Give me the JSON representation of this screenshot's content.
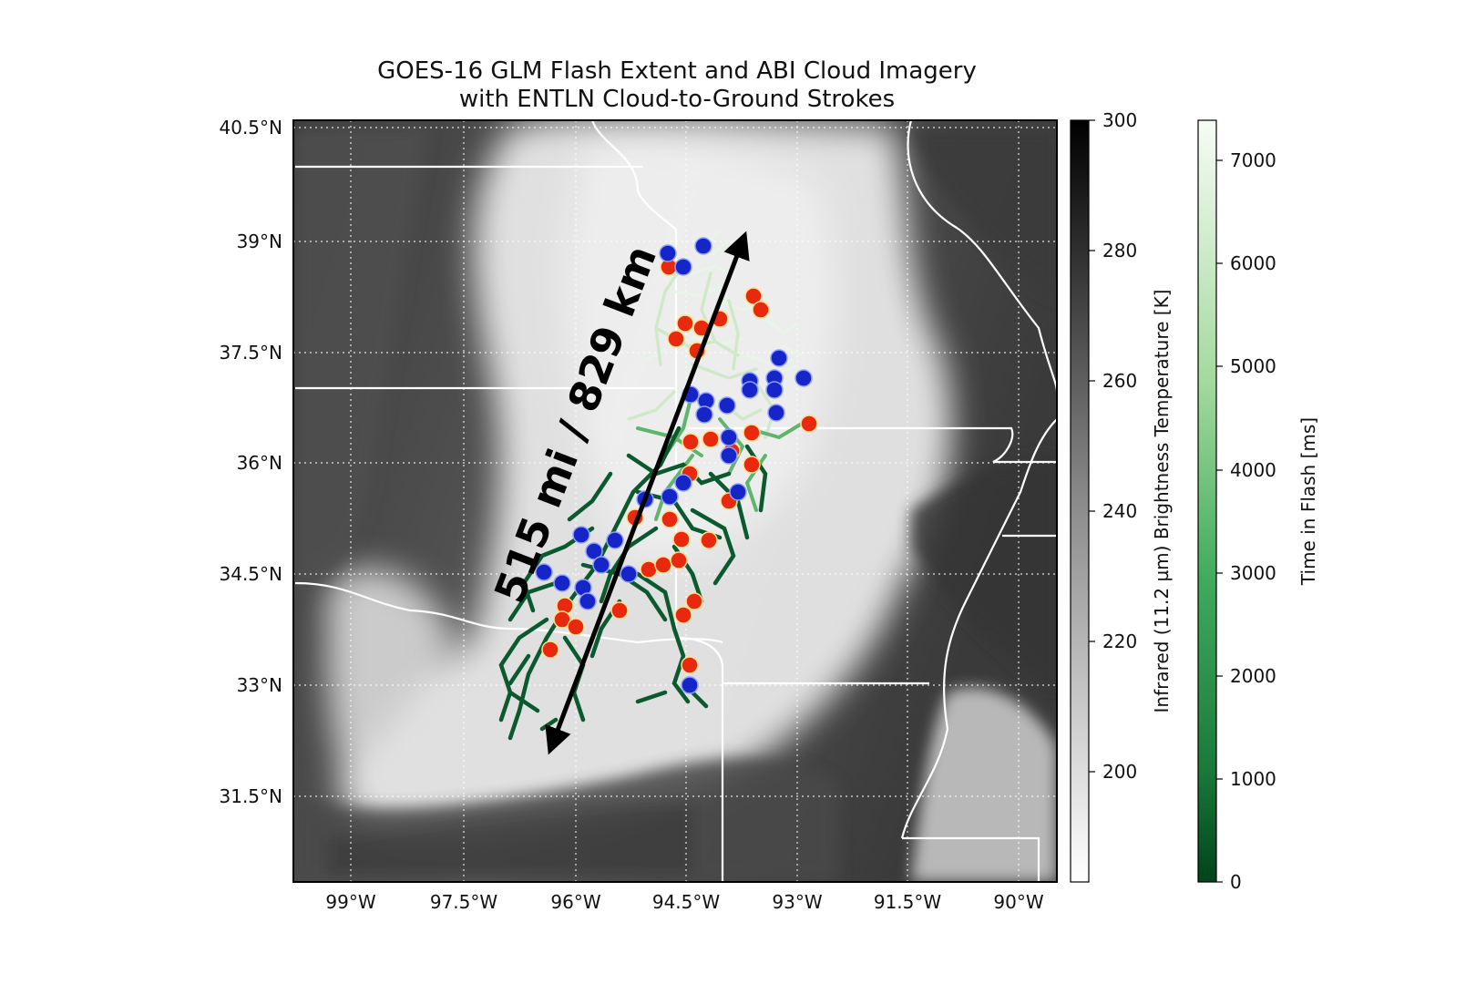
{
  "title": {
    "line1": "GOES-16 GLM Flash Extent and ABI Cloud Imagery",
    "line2": "with ENTLN Cloud-to-Ground Strokes"
  },
  "annotation": {
    "distance_label": "515 mi / 829 km"
  },
  "axes": {
    "lat_ticks": [
      "40.5°N",
      "39°N",
      "37.5°N",
      "36°N",
      "34.5°N",
      "33°N",
      "31.5°N"
    ],
    "lon_ticks": [
      "99°W",
      "97.5°W",
      "96°W",
      "94.5°W",
      "93°W",
      "91.5°W",
      "90°W"
    ]
  },
  "colorbars": {
    "brightness": {
      "label": "Infrared (11.2 µm) Brightness Temperature [K]",
      "ticks": [
        "300",
        "280",
        "260",
        "240",
        "220",
        "200"
      ],
      "range": [
        183,
        300
      ],
      "colormap": "gray (white=cold, black=warm)"
    },
    "flash_time": {
      "label": "Time in Flash [ms]",
      "ticks": [
        "7000",
        "6000",
        "5000",
        "4000",
        "3000",
        "2000",
        "1000",
        "0"
      ],
      "range": [
        0,
        7400
      ],
      "colormap": "greens (dark=0, white=max)"
    }
  },
  "colors": {
    "flash_dark": "#0b5a2f",
    "flash_light": "#e8f5e8",
    "stroke_red": "#e8280f",
    "stroke_blue": "#1525c8",
    "state_border": "#ffffff"
  },
  "grid": "dotted white",
  "legend": "none"
}
